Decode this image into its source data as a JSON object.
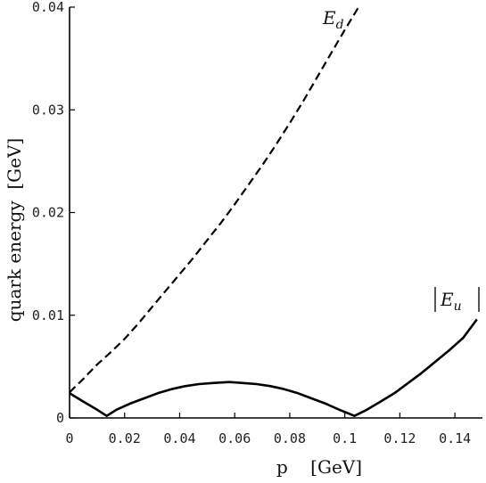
{
  "chart_data": {
    "type": "line",
    "xlabel": "p    [GeV]",
    "ylabel": "quark energy  [GeV]",
    "xlim": [
      0,
      0.15
    ],
    "ylim": [
      0,
      0.04
    ],
    "xticks": [
      0,
      0.02,
      0.04,
      0.06,
      0.08,
      0.1,
      0.12,
      0.14
    ],
    "xtick_labels": [
      "0",
      "0.02",
      "0.04",
      "0.06",
      "0.08",
      "0.1",
      "0.12",
      "0.14"
    ],
    "yticks": [
      0,
      0.01,
      0.02,
      0.03,
      0.04
    ],
    "ytick_labels": [
      "0",
      "0.01",
      "0.02",
      "0.03",
      "0.04"
    ],
    "grid": false,
    "series": [
      {
        "name": "E_d",
        "label_main": "E",
        "label_sub": "d",
        "style": "dashed",
        "x": [
          0,
          0.005,
          0.01,
          0.015,
          0.02,
          0.025,
          0.03,
          0.035,
          0.04,
          0.045,
          0.05,
          0.055,
          0.06,
          0.065,
          0.07,
          0.075,
          0.08,
          0.085,
          0.09,
          0.095,
          0.1,
          0.105
        ],
        "y": [
          0.0025,
          0.0038,
          0.0052,
          0.0064,
          0.0077,
          0.0092,
          0.0108,
          0.0124,
          0.014,
          0.0156,
          0.0173,
          0.019,
          0.0208,
          0.0227,
          0.0246,
          0.0266,
          0.0287,
          0.0309,
          0.0332,
          0.0355,
          0.0378,
          0.04
        ]
      },
      {
        "name": "|E_u|",
        "label_main": "E",
        "label_sub": "u",
        "style": "solid",
        "x": [
          0,
          0.005,
          0.01,
          0.0135,
          0.017,
          0.022,
          0.027,
          0.032,
          0.037,
          0.042,
          0.047,
          0.052,
          0.058,
          0.063,
          0.068,
          0.073,
          0.078,
          0.083,
          0.088,
          0.093,
          0.098,
          0.1035,
          0.108,
          0.113,
          0.118,
          0.123,
          0.128,
          0.133,
          0.138,
          0.143,
          0.148
        ],
        "y": [
          0.0024,
          0.0016,
          0.0008,
          0.0002,
          0.0008,
          0.0014,
          0.0019,
          0.0024,
          0.0028,
          0.0031,
          0.0033,
          0.0034,
          0.0035,
          0.0034,
          0.0033,
          0.0031,
          0.0028,
          0.0024,
          0.0019,
          0.0014,
          0.0008,
          0.0002,
          0.0008,
          0.0016,
          0.0024,
          0.0034,
          0.0044,
          0.0055,
          0.0066,
          0.0078,
          0.0096
        ]
      }
    ]
  }
}
